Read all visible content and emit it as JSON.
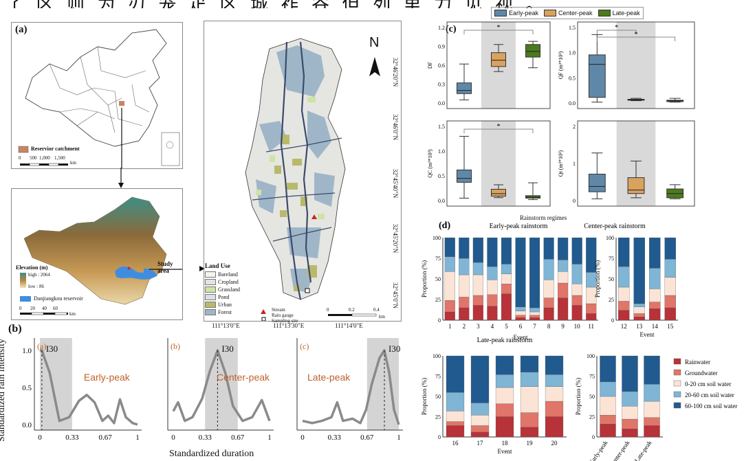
{
  "top_text": "了 区 则 为 刃 笼 疋 区 城 祚 谷 但 列 里 力 见 视 。",
  "panel_a": {
    "label": "(a)",
    "catchment_legend": "Reservior catchment",
    "scale_ticks": [
      "0",
      "500",
      "1,000",
      "1,500"
    ],
    "scale_unit": "km",
    "elevation_title": "Elevation (m)",
    "elevation_high": "high : 2064",
    "elevation_low": "low : 86",
    "reservoir_legend": "Danjiangkou reservoir",
    "dem_scale_ticks": [
      "0",
      "20",
      "40",
      "60"
    ],
    "dem_scale_unit": "km",
    "study_area": "Study area",
    "landuse_title": "Land Use",
    "landuse_items": [
      {
        "label": "Bareland",
        "color": "#f4f4ef"
      },
      {
        "label": "Cropland",
        "color": "#e3e3e0"
      },
      {
        "label": "Grassland",
        "color": "#cfe3a6"
      },
      {
        "label": "Pond",
        "color": "#d9dfe2"
      },
      {
        "label": "Urban",
        "color": "#b9b96c"
      },
      {
        "label": "Forest",
        "color": "#9fb6c8"
      }
    ],
    "line_legend": [
      "Stream",
      "Rain gauge",
      "Sampling site"
    ],
    "map_scale_ticks": [
      "0",
      "0.2",
      "0.4"
    ],
    "map_scale_unit": "km",
    "north": "N",
    "lon_ticks": [
      "111°13'0\"E",
      "111°13'30\"E",
      "111°14'0\"E"
    ],
    "lat_ticks": [
      "32°46'20\"N",
      "32°46'0\"N",
      "32°45'40\"N",
      "32°45'20\"N",
      "32°45'0\"N"
    ]
  },
  "panel_b": {
    "label": "(b)",
    "ylabel": "Standardized rain intensity",
    "xlabel": "Standardized duration",
    "subplots": [
      {
        "tag": "(a)",
        "name": "Early-peak",
        "i30": "I30"
      },
      {
        "tag": "(b)",
        "name": "Center-peak",
        "i30": "I30"
      },
      {
        "tag": "(c)",
        "name": "Late-peak",
        "i30": "I30"
      }
    ],
    "xticks": [
      "0",
      "0.33",
      "0.67",
      "1"
    ],
    "yticks": [
      "0.0",
      "0.5",
      "1.0"
    ]
  },
  "panel_c": {
    "label": "(c)",
    "legend": [
      {
        "label": "Early-peak",
        "color": "#5f88a8"
      },
      {
        "label": "Center-peak",
        "color": "#d9a25f"
      },
      {
        "label": "Late-peak",
        "color": "#4c7a1e"
      }
    ],
    "xlabel": "Rainstorm regimes",
    "boxplots": [
      {
        "ylabel": "DF",
        "yticks": [
          "0.0",
          "0.3",
          "0.6",
          "0.9",
          "1.2"
        ],
        "ylim": [
          0,
          1.2
        ],
        "sig": [
          "*"
        ],
        "boxes": [
          [
            0.05,
            0.15,
            0.2,
            0.32,
            0.62
          ],
          [
            0.5,
            0.58,
            0.68,
            0.8,
            0.93
          ],
          [
            0.56,
            0.73,
            0.82,
            0.93,
            0.98
          ]
        ]
      },
      {
        "ylabel": "QF (m³*10³)",
        "yticks": [
          "0.0",
          "0.5",
          "1.0",
          "1.5"
        ],
        "ylim": [
          0,
          1.6
        ],
        "sig": [
          "*",
          "*"
        ],
        "boxes": [
          [
            0.02,
            0.12,
            0.82,
            1.02,
            1.45
          ],
          [
            0.05,
            0.06,
            0.07,
            0.08,
            0.1
          ],
          [
            0.02,
            0.03,
            0.05,
            0.06,
            0.1
          ]
        ]
      },
      {
        "ylabel": "QC (m³*10³)",
        "yticks": [
          "0.0",
          "0.5",
          "1.0",
          "1.5"
        ],
        "ylim": [
          0,
          1.5
        ],
        "sig": [
          "*"
        ],
        "boxes": [
          [
            0.05,
            0.37,
            0.45,
            0.62,
            1.3
          ],
          [
            0.06,
            0.09,
            0.14,
            0.23,
            0.32
          ],
          [
            0.02,
            0.05,
            0.07,
            0.1,
            0.36
          ]
        ]
      },
      {
        "ylabel": "Qt (m³*10³)",
        "yticks": [
          "0",
          "1",
          "2"
        ],
        "ylim": [
          0,
          2.1
        ],
        "sig": [],
        "boxes": [
          [
            0.05,
            0.25,
            0.4,
            0.75,
            1.35
          ],
          [
            0.08,
            0.2,
            0.3,
            0.65,
            1.12
          ],
          [
            0.05,
            0.08,
            0.2,
            0.33,
            0.45
          ]
        ]
      }
    ]
  },
  "panel_d": {
    "label": "(d)",
    "titles": [
      "Early-peak rainstorm",
      "Center-peak rainstorm",
      "Late-peak rainstorm"
    ],
    "ylabel": "Proportion (%)",
    "xlabel": "Event",
    "yticks": [
      "0",
      "25",
      "50",
      "75",
      "100"
    ],
    "legend": [
      {
        "label": "Rainwater",
        "color": "#b73239"
      },
      {
        "label": "Groundwater",
        "color": "#e0756a"
      },
      {
        "label": "0-20 cm soil water",
        "color": "#fbe4d6"
      },
      {
        "label": "20-60 cm soil water",
        "color": "#7fb5d5"
      },
      {
        "label": "60-100 cm soil water",
        "color": "#215a8e"
      }
    ],
    "early_events": [
      "1",
      "2",
      "3",
      "4",
      "5",
      "6",
      "7",
      "8",
      "9",
      "10",
      "11"
    ],
    "early_values": [
      [
        10,
        14,
        35,
        18,
        23
      ],
      [
        15,
        13,
        27,
        20,
        25
      ],
      [
        18,
        12,
        25,
        15,
        30
      ],
      [
        17,
        14,
        18,
        16,
        35
      ],
      [
        32,
        12,
        12,
        12,
        32
      ],
      [
        3,
        3,
        5,
        5,
        84
      ],
      [
        3,
        3,
        4,
        5,
        85
      ],
      [
        15,
        12,
        22,
        25,
        26
      ],
      [
        27,
        18,
        14,
        14,
        27
      ],
      [
        18,
        12,
        14,
        24,
        32
      ],
      [
        8,
        12,
        20,
        18,
        42
      ]
    ],
    "center_events": [
      "12",
      "13",
      "14",
      "15"
    ],
    "center_values": [
      [
        12,
        11,
        17,
        25,
        35
      ],
      [
        4,
        4,
        8,
        4,
        80
      ],
      [
        14,
        8,
        16,
        25,
        37
      ],
      [
        15,
        15,
        22,
        22,
        26
      ]
    ],
    "late_events": [
      "16",
      "17",
      "18",
      "19",
      "20"
    ],
    "late_values": [
      [
        14,
        5,
        13,
        23,
        45
      ],
      [
        6,
        8,
        13,
        15,
        58
      ],
      [
        25,
        16,
        20,
        16,
        23
      ],
      [
        12,
        18,
        32,
        18,
        20
      ],
      [
        25,
        19,
        18,
        15,
        23
      ]
    ],
    "summary_categories": [
      "Early-peak",
      "Center-peak",
      "Late-peak"
    ],
    "summary_values": [
      [
        16,
        11,
        23,
        18,
        32
      ],
      [
        10,
        12,
        16,
        18,
        44
      ],
      [
        14,
        10,
        20,
        21,
        35
      ]
    ]
  }
}
